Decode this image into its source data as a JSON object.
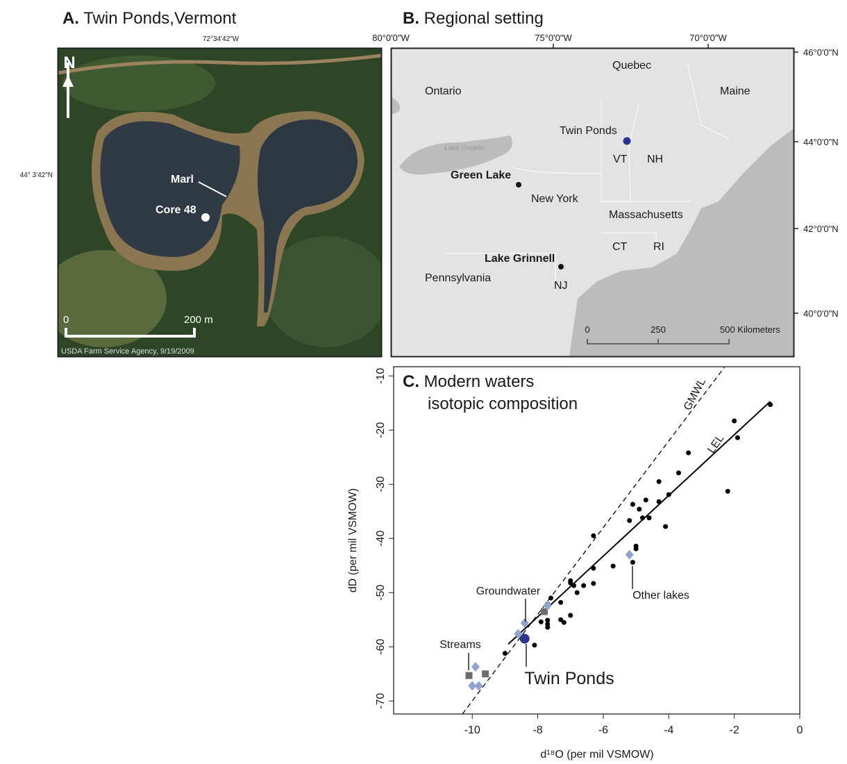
{
  "panel_a": {
    "panel_label": "A.",
    "title": "Twin Ponds,Vermont",
    "longitude": "72°34'42\"W",
    "latitude": "44° 3'42\"N",
    "north": "N",
    "marl": "Marl",
    "core": "Core 48",
    "scale_start": "0",
    "scale_end": "200 m",
    "credit": "USDA Farm Service Agency, 9/19/2009"
  },
  "panel_b": {
    "panel_label": "B.",
    "title": "Regional setting",
    "longitudes": [
      "80°0'0\"W",
      "75°0'0\"W",
      "70°0'0\"W"
    ],
    "latitudes": [
      "46°0'0\"N",
      "44°0'0\"N",
      "42°0'0\"N",
      "40°0'0\"N"
    ],
    "places": [
      "Quebec",
      "Ontario",
      "Maine",
      "Twin Ponds",
      "VT",
      "NH",
      "Green Lake",
      "New York",
      "Massachusetts",
      "CT",
      "RI",
      "Lake Grinnell",
      "Pennsylvania",
      "NJ"
    ],
    "lake_label": "Lake Ontario",
    "scale_labels": [
      "0",
      "250",
      "500 Kilometers"
    ]
  },
  "chart_data": {
    "type": "scatter",
    "panel_label": "C.",
    "title_lines": [
      "Modern waters",
      "isotopic composition"
    ],
    "x_label": "d¹⁸O (per mil VSMOW)",
    "y_label": "dD (per mil VSMOW)",
    "xlim": [
      -12.4,
      0
    ],
    "ylim": [
      -72.4,
      -8.3
    ],
    "xticks": [
      -10,
      -8,
      -6,
      -4,
      -2,
      0
    ],
    "yticks": [
      -70,
      -60,
      -50,
      -40,
      -30,
      -20,
      -10
    ],
    "series": [
      {
        "marker": "circle",
        "color": "#000000",
        "x": [
          -0.9,
          -2.0,
          -1.9,
          -2.2,
          -3.4,
          -3.7,
          -4.0,
          -4.3,
          -4.3,
          -4.1,
          -4.7,
          -4.9,
          -5.1,
          -4.6,
          -4.8,
          -5.2,
          -5.0,
          -5.0,
          -5.1,
          -6.3,
          -6.3,
          -6.3,
          -5.7,
          -6.6,
          -7.0,
          -6.9,
          -7.0,
          -6.8,
          -7.3,
          -7.6,
          -7.7,
          -7.0,
          -7.3,
          -7.2,
          -7.7,
          -7.7,
          -7.7,
          -7.9,
          -8.1,
          -9.0
        ],
        "values": [
          -15.3,
          -18.3,
          -21.4,
          -31.3,
          -24.2,
          -27.9,
          -31.9,
          -29.5,
          -33.2,
          -37.8,
          -32.9,
          -34.6,
          -33.7,
          -36.2,
          -36.2,
          -36.7,
          -41.4,
          -41.9,
          -44.4,
          -39.5,
          -45.5,
          -48.3,
          -45.1,
          -48.7,
          -48.2,
          -48.7,
          -47.8,
          -50.0,
          -51.8,
          -51.0,
          -52.1,
          -54.2,
          -55.0,
          -55.5,
          -55.1,
          -55.8,
          -56.4,
          -55.4,
          -59.7,
          -61.2
        ]
      },
      {
        "marker": "square",
        "color": "#6b6b6b",
        "x": [
          -10.1,
          -9.6,
          -7.8
        ],
        "values": [
          -65.3,
          -65.0,
          -53.5
        ]
      },
      {
        "marker": "diamond",
        "color": "#8fa3cc",
        "x": [
          -9.9,
          -10.0,
          -9.8,
          -8.6,
          -8.4,
          -7.7,
          -5.2
        ],
        "values": [
          -63.7,
          -67.2,
          -67.2,
          -57.6,
          -55.6,
          -52.4,
          -43.0
        ]
      },
      {
        "marker": "big-circle",
        "color": "#2b3590",
        "x": [
          -8.4
        ],
        "values": [
          -58.5
        ]
      }
    ],
    "lines": [
      {
        "label": "GMWL",
        "dash": true,
        "x": [
          -10.3,
          -2.3
        ],
        "values": [
          -72.4,
          -8.4
        ]
      },
      {
        "label": "LEL",
        "dash": false,
        "x": [
          -8.9,
          -0.9
        ],
        "values": [
          -59.5,
          -14.7
        ]
      }
    ],
    "annotations": [
      "Groundwater",
      "Streams",
      "Other lakes",
      "Twin Ponds"
    ]
  }
}
